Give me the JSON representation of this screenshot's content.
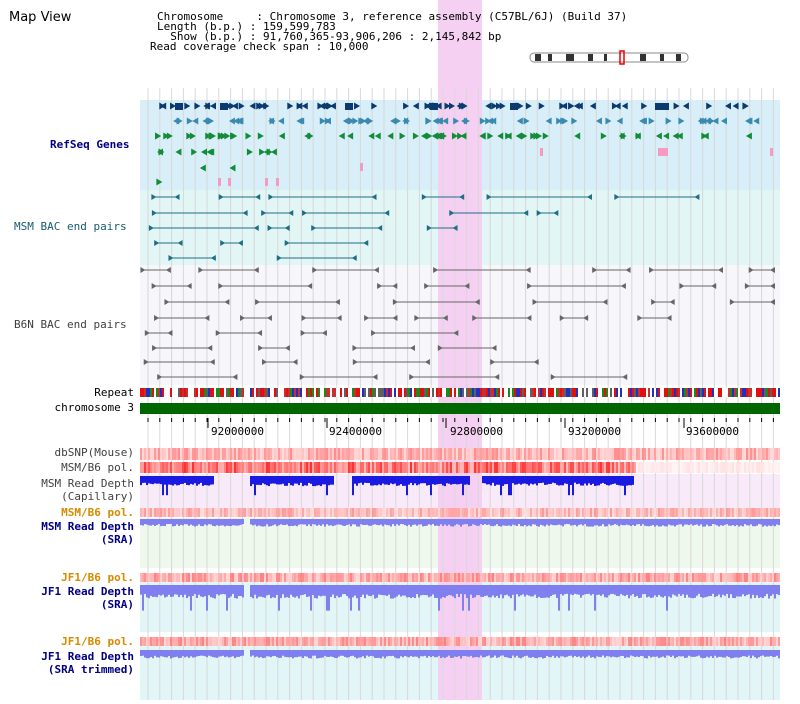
{
  "title": "Map View",
  "info": {
    "chromosome_line": "Chromosome     : Chromosome 3, reference assembly (C57BL/6J) (Build 37)",
    "length_line": "Length (b.p.) : 159,599,783",
    "show_line": "  Show (b.p.) : 91,760,365-93,906,206 : 2,145,842 bp",
    "coverage_line": "Read coverage check span : 10,000"
  },
  "tracks": {
    "refseq": "RefSeq Genes",
    "msm_bac": "MSM BAC end pairs",
    "b6n_bac": "B6N BAC end pairs",
    "repeat": "Repeat",
    "chromosome": "chromosome 3",
    "dbsnp": "dbSNP(Mouse)",
    "msm_b6_pol_1": "MSM/B6 pol.",
    "msm_depth_cap_1": "MSM Read Depth",
    "msm_depth_cap_2": "(Capillary)",
    "msm_b6_pol_2": "MSM/B6 pol.",
    "msm_depth_sra_1": "MSM Read Depth",
    "msm_depth_sra_2": "(SRA)",
    "jf1_b6_pol_1": "JF1/B6 pol.",
    "jf1_depth_sra_1": "JF1 Read Depth",
    "jf1_depth_sra_2": "(SRA)",
    "jf1_b6_pol_2": "JF1/B6 pol.",
    "jf1_depth_trim_1": "JF1 Read Depth",
    "jf1_depth_trim_2": "(SRA trimmed)"
  },
  "axis": {
    "ticks": [
      "92000000",
      "92400000",
      "92800000",
      "93200000",
      "93600000"
    ]
  },
  "colors": {
    "highlight": "#f6d0f3",
    "refseq_bg": "#d8eef8",
    "msm_bac_bg": "#e2f6f6",
    "chromosome": "#006600",
    "gene_dark": "#0a3a6e",
    "gene_teal": "#3a8ab0",
    "gene_green": "#138c3a",
    "depth_blue": "#1a1ae0",
    "depth_light": "#7f7ff0",
    "pol_red": "#e82020",
    "label_navy": "#000080",
    "label_orange": "#d58a00"
  }
}
